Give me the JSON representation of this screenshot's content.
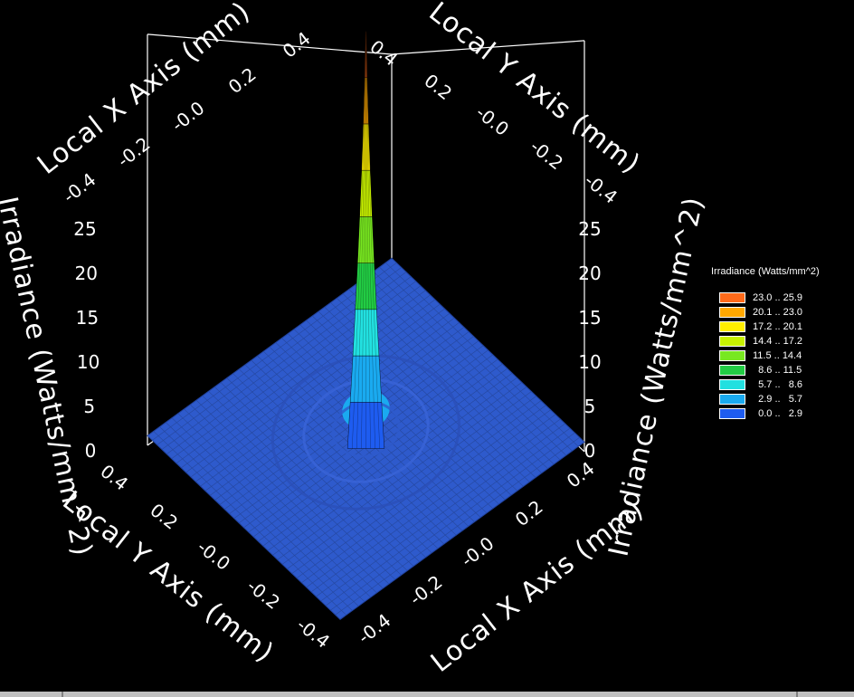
{
  "chart_data": {
    "type": "surface3d",
    "title": "",
    "x_axis": {
      "label": "Local X Axis (mm)",
      "ticks": [
        "-0.4",
        "-0.2",
        "-0.0",
        "0.2",
        "0.4"
      ],
      "range": [
        -0.4,
        0.4
      ]
    },
    "y_axis": {
      "label": "Local Y Axis (mm)",
      "ticks": [
        "0.4",
        "0.2",
        "-0.0",
        "-0.2",
        "-0.4"
      ],
      "range": [
        -0.4,
        0.4
      ]
    },
    "z_axis": {
      "label": "Irradiance (Watts/mm^2)",
      "ticks": [
        "0",
        "5",
        "10",
        "15",
        "20",
        "25"
      ],
      "range": [
        0,
        25.9
      ]
    },
    "peak": {
      "x": 0.0,
      "y": 0.0,
      "z": 25.9
    },
    "base_value": 1.0,
    "legend": {
      "title": "Irradiance (Watts/mm^2)",
      "placement": "right",
      "entries": [
        {
          "label": "23.0 .. 25.9",
          "color": "#ff6a1a"
        },
        {
          "label": "20.1 .. 23.0",
          "color": "#ffa800"
        },
        {
          "label": "17.2 .. 20.1",
          "color": "#ffee00"
        },
        {
          "label": "14.4 .. 17.2",
          "color": "#c8f200"
        },
        {
          "label": "11.5 .. 14.4",
          "color": "#78e820"
        },
        {
          "label": "  8.6 .. 11.5",
          "color": "#22cc44"
        },
        {
          "label": "  5.7 ..   8.6",
          "color": "#22e0e0"
        },
        {
          "label": "  2.9 ..   5.7",
          "color": "#1aaaf0"
        },
        {
          "label": "  0.0 ..   2.9",
          "color": "#1e5cf0"
        }
      ]
    },
    "background": "#000000",
    "base_color": "#2e5acc"
  }
}
